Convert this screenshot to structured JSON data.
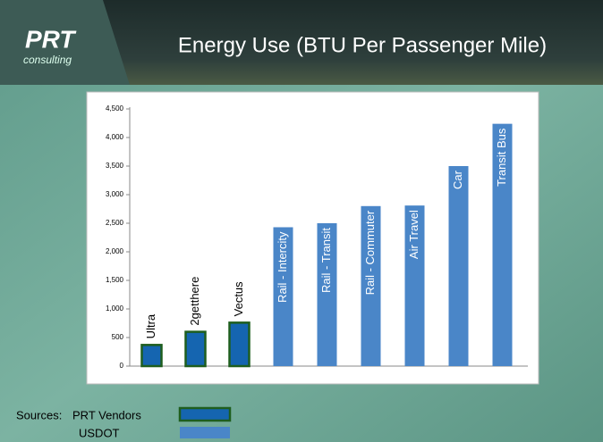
{
  "header": {
    "logo": "PRT",
    "logo_sub": "consulting"
  },
  "chart_data": {
    "type": "bar",
    "title": "Energy Use (BTU Per Passenger Mile)",
    "categories": [
      "Ultra",
      "2getthere",
      "Vectus",
      "Rail - Intercity",
      "Rail - Transit",
      "Rail - Commuter",
      "Air Travel",
      "Car",
      "Transit Bus"
    ],
    "legend_title": "Sources:",
    "series": [
      {
        "name": "PRT Vendors",
        "color": "#1565b0",
        "outline": "#1e5e1e",
        "values": [
          370,
          600,
          760,
          null,
          null,
          null,
          null,
          null,
          null
        ]
      },
      {
        "name": "USDOT",
        "color": "#4a86c8",
        "values": [
          null,
          null,
          null,
          2430,
          2500,
          2800,
          2810,
          3500,
          4240
        ]
      }
    ],
    "ylim": [
      0,
      4500
    ],
    "yticks": [
      0,
      500,
      {
        "value": 1000,
        "label": "1,000"
      },
      {
        "value": 1500,
        "label": "1,500"
      },
      {
        "value": 2000,
        "label": "2,000"
      },
      {
        "value": 2500,
        "label": "2,500"
      },
      {
        "value": 3000,
        "label": "3,000"
      },
      {
        "value": 3500,
        "label": "3,500"
      },
      {
        "value": 4000,
        "label": "4,000"
      },
      {
        "value": 4500,
        "label": "4,500"
      }
    ],
    "grid": false
  }
}
